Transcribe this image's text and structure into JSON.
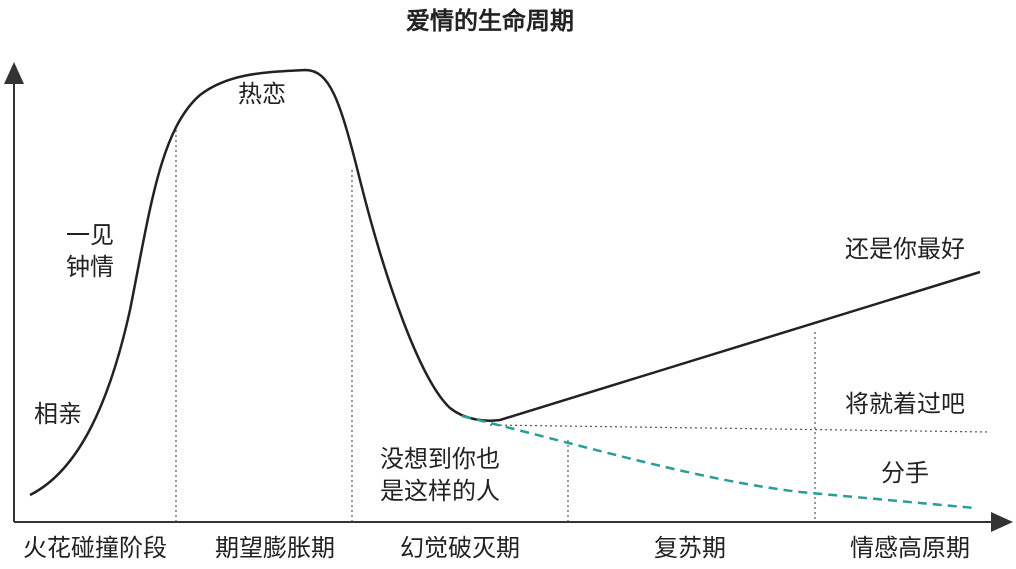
{
  "title": "爱情的生命周期",
  "curve_labels": {
    "peak": "热恋",
    "first_sight": [
      "一见",
      "钟情"
    ],
    "blind_date": "相亲",
    "best": "还是你最好",
    "settle": "将就着过吧",
    "breakup": "分手",
    "disillusion": [
      "没想到你也",
      "是这样的人"
    ]
  },
  "phases": [
    "火花碰撞阶段",
    "期望膨胀期",
    "幻觉破灭期",
    "复苏期",
    "情感高原期"
  ]
}
